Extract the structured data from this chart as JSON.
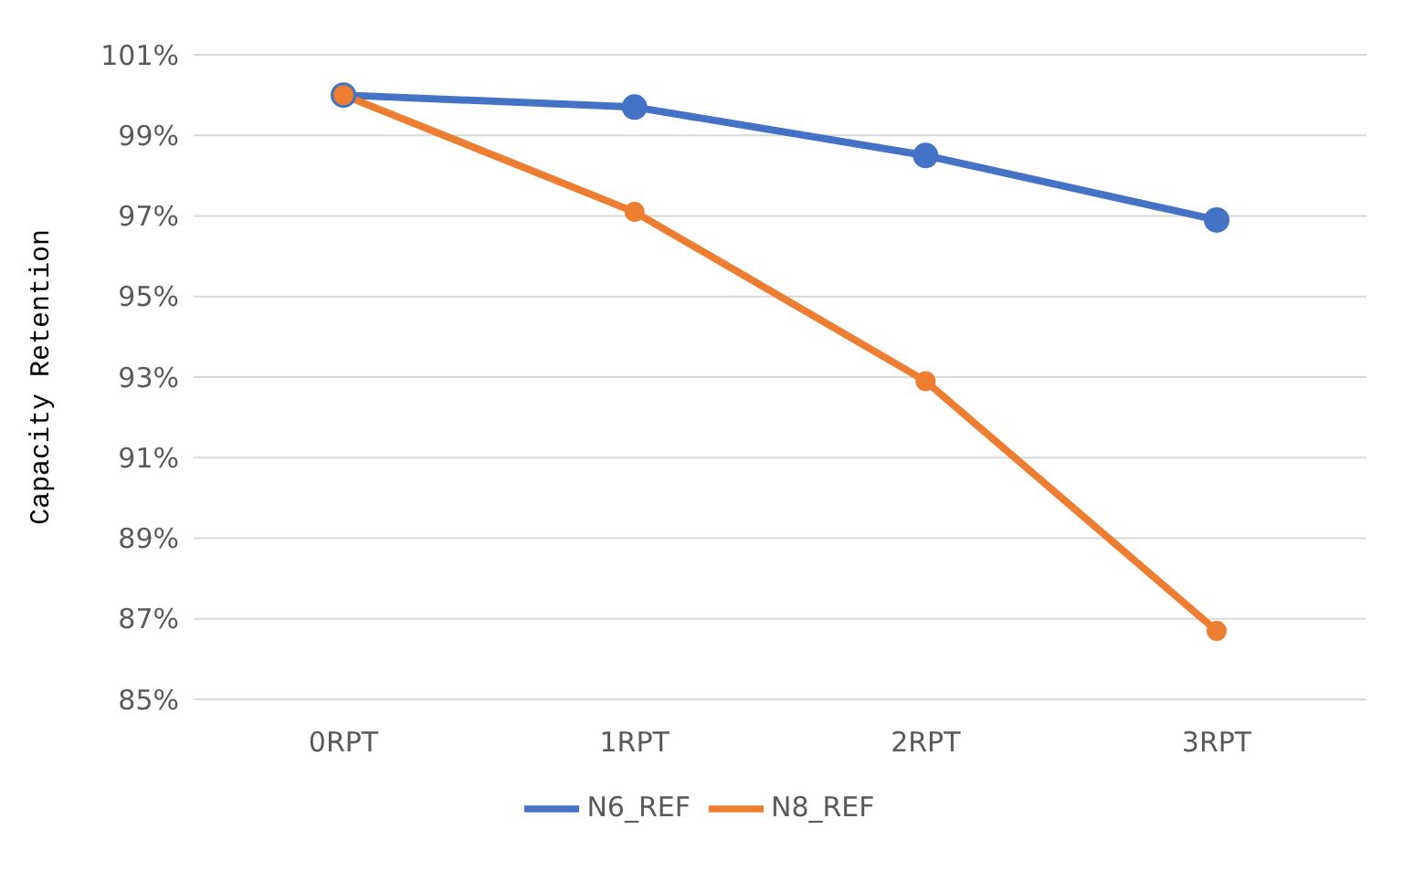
{
  "chart_data": {
    "type": "line",
    "ylabel": "Capacity Retention",
    "categories": [
      "0RPT",
      "1RPT",
      "2RPT",
      "3RPT"
    ],
    "series": [
      {
        "name": "N6_REF",
        "color": "#4472c4",
        "values": [
          100,
          99.7,
          98.5,
          96.9
        ]
      },
      {
        "name": "N8_REF",
        "color": "#ed7d31",
        "values": [
          100,
          97.1,
          92.9,
          86.7
        ]
      }
    ],
    "ylim": [
      85,
      101
    ],
    "yticks": [
      {
        "value": 85,
        "label": "85%"
      },
      {
        "value": 87,
        "label": "87%"
      },
      {
        "value": 89,
        "label": "89%"
      },
      {
        "value": 91,
        "label": "91%"
      },
      {
        "value": 93,
        "label": "93%"
      },
      {
        "value": 95,
        "label": "95%"
      },
      {
        "value": 97,
        "label": "97%"
      },
      {
        "value": 99,
        "label": "99%"
      },
      {
        "value": 101,
        "label": "101%"
      }
    ],
    "grid": "y",
    "legend": "bottom",
    "marker": "circle",
    "line_style": "solid"
  }
}
